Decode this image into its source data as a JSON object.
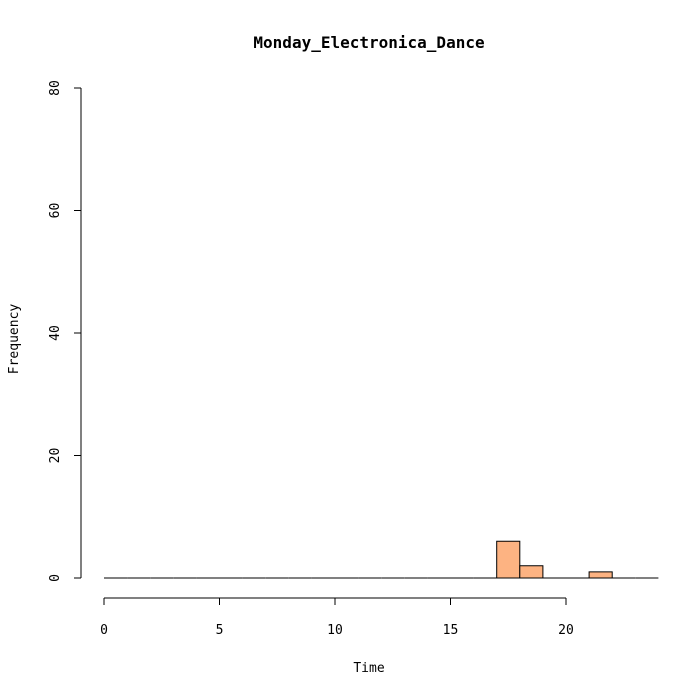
{
  "chart_data": {
    "type": "histogram",
    "title": "Monday_Electronica_Dance",
    "xlabel": "Time",
    "ylabel": "Frequency",
    "xlim": [
      0,
      24
    ],
    "ylim": [
      0,
      80
    ],
    "x_ticks": [
      0,
      5,
      10,
      15,
      20
    ],
    "y_ticks": [
      0,
      20,
      40,
      60,
      80
    ],
    "bin_width": 1,
    "bins": [
      {
        "start": 0,
        "end": 1,
        "count": 0
      },
      {
        "start": 1,
        "end": 2,
        "count": 0
      },
      {
        "start": 2,
        "end": 3,
        "count": 0
      },
      {
        "start": 3,
        "end": 4,
        "count": 0
      },
      {
        "start": 4,
        "end": 5,
        "count": 0
      },
      {
        "start": 5,
        "end": 6,
        "count": 0
      },
      {
        "start": 6,
        "end": 7,
        "count": 0
      },
      {
        "start": 7,
        "end": 8,
        "count": 0
      },
      {
        "start": 8,
        "end": 9,
        "count": 0
      },
      {
        "start": 9,
        "end": 10,
        "count": 0
      },
      {
        "start": 10,
        "end": 11,
        "count": 0
      },
      {
        "start": 11,
        "end": 12,
        "count": 0
      },
      {
        "start": 12,
        "end": 13,
        "count": 0
      },
      {
        "start": 13,
        "end": 14,
        "count": 0
      },
      {
        "start": 14,
        "end": 15,
        "count": 0
      },
      {
        "start": 15,
        "end": 16,
        "count": 0
      },
      {
        "start": 16,
        "end": 17,
        "count": 0
      },
      {
        "start": 17,
        "end": 18,
        "count": 6
      },
      {
        "start": 18,
        "end": 19,
        "count": 2
      },
      {
        "start": 19,
        "end": 20,
        "count": 0
      },
      {
        "start": 20,
        "end": 21,
        "count": 0
      },
      {
        "start": 21,
        "end": 22,
        "count": 1
      },
      {
        "start": 22,
        "end": 23,
        "count": 0
      },
      {
        "start": 23,
        "end": 24,
        "count": 0
      }
    ],
    "bar_color": "#FDB382",
    "bar_border_color": "#000000",
    "grid": false
  }
}
